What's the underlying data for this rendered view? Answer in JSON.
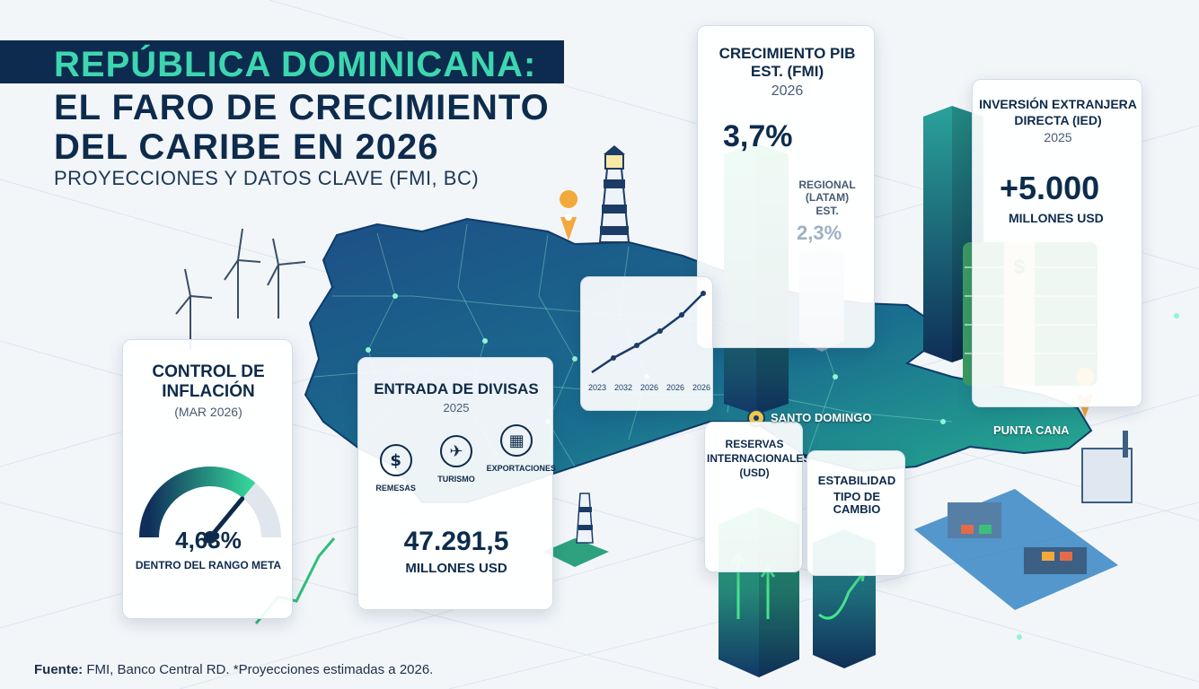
{
  "header": {
    "title_line1": "REPÚBLICA DOMINICANA:",
    "title_line2": "EL FARO DE CRECIMIENTO",
    "title_line3": "DEL CARIBE EN 2026",
    "subtitle": "PROYECCIONES Y DATOS CLAVE (FMI, BC)"
  },
  "gdp_card": {
    "title_line1": "CRECIMIENTO PIB",
    "title_line2": "EST. (FMI)",
    "year": "2026",
    "value": "3,7%",
    "value_fraction": 0.037,
    "regional_label_1": "REGIONAL",
    "regional_label_2": "(LATAM)",
    "regional_label_3": "EST.",
    "regional_value": "2,3%",
    "regional_fraction": 0.023
  },
  "fdi_card": {
    "title_line1": "INVERSIÓN EXTRANJERA",
    "title_line2": "DIRECTA (IED)",
    "year": "2025",
    "value": "+5.000",
    "unit": "MILLONES USD"
  },
  "inflation_card": {
    "title_line1": "CONTROL DE",
    "title_line2": "INFLACIÓN",
    "period": "(MAR 2026)",
    "value": "4,63%",
    "caption": "DENTRO DEL RANGO META",
    "gauge_level": 0.72
  },
  "fx_card": {
    "title": "ENTRADA DE DIVISAS",
    "year": "2025",
    "items": [
      {
        "label": "REMESAS",
        "icon": "money-hand-icon"
      },
      {
        "label": "TURISMO",
        "icon": "airplane-icon"
      },
      {
        "label": "EXPORTACIONES",
        "icon": "container-icon"
      }
    ],
    "value": "47.291,5",
    "unit": "MILLONES USD"
  },
  "trend_chart": {
    "ticks": [
      "2023",
      "2032",
      "2026",
      "2026",
      "2026"
    ]
  },
  "reserves_card": {
    "title_line1": "RESERVAS",
    "title_line2": "INTERNACIONALES",
    "title_line3": "(USD)"
  },
  "exchange_card": {
    "title_line1": "ESTABILIDAD",
    "title_line2": "TIPO DE CAMBIO"
  },
  "locations": {
    "santo_domingo": "SANTO DOMINGO",
    "punta_cana": "PUNTA CANA"
  },
  "footer": {
    "source_label": "Fuente:",
    "source_text": "FMI, Banco Central RD. *Proyecciones estimadas a 2026."
  },
  "colors": {
    "navy": "#0c2b4e",
    "teal": "#3dd6b0",
    "green": "#2fbf7a",
    "map_dark": "#123a6b",
    "map_light": "#1f9f8f"
  }
}
